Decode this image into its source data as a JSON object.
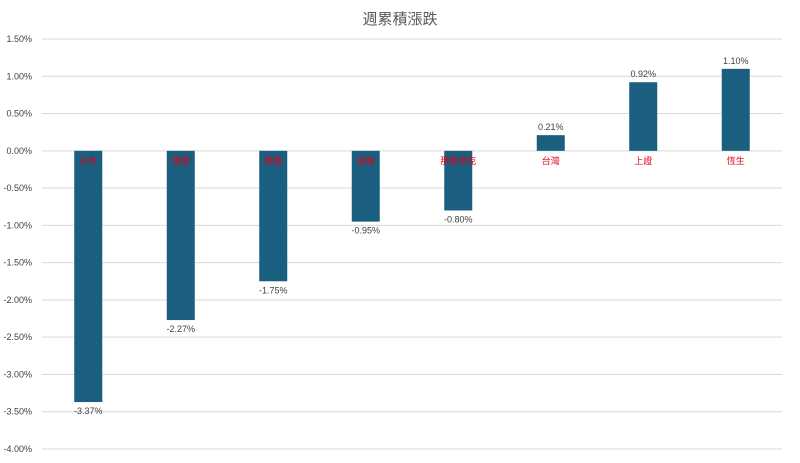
{
  "chart_data": {
    "type": "bar",
    "title": "週累積漲跌",
    "categories": [
      "日本",
      "德國",
      "韓國",
      "道瓊",
      "那斯達克",
      "台灣",
      "上證",
      "恆生"
    ],
    "values": [
      -3.37,
      -2.27,
      -1.75,
      -0.95,
      -0.8,
      0.21,
      0.92,
      1.1
    ],
    "value_labels": [
      "-3.37%",
      "-2.27%",
      "-1.75%",
      "-0.95%",
      "-0.80%",
      "0.21%",
      "0.92%",
      "1.10%"
    ],
    "yticks": [
      "1.50%",
      "1.00%",
      "0.50%",
      "0.00%",
      "-0.50%",
      "-1.00%",
      "-1.50%",
      "-2.00%",
      "-2.50%",
      "-3.00%",
      "-3.50%",
      "-4.00%"
    ],
    "ylim": [
      -4.0,
      1.5
    ],
    "grid": true,
    "legend": "none",
    "colors": {
      "bar": "#1a5f7f",
      "category_label": "#e2001a",
      "grid": "#d9d9d9"
    }
  }
}
